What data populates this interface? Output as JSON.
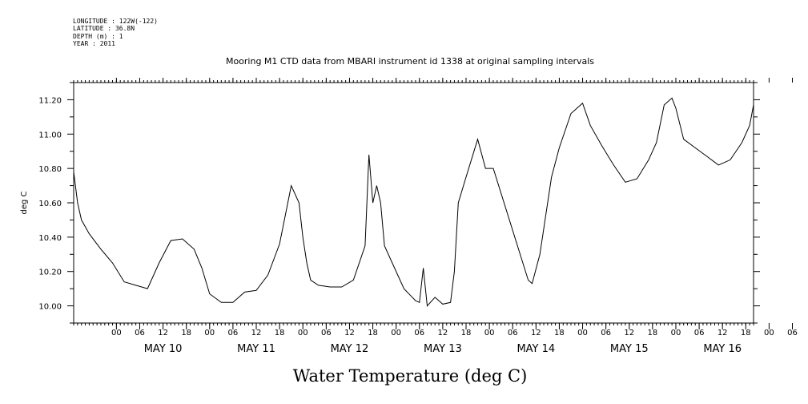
{
  "header": {
    "longitude": "LONGITUDE : 122W(-122)",
    "latitude": "LATITUDE : 36.8N",
    "depth": "DEPTH (m) : 1",
    "year": "YEAR : 2011"
  },
  "chart_data": {
    "type": "line",
    "title": "Mooring M1 CTD data from MBARI instrument id 1338 at original sampling intervals",
    "xlabel": "Water Temperature (deg C)",
    "ylabel": "deg C",
    "ylim": [
      9.9,
      11.3
    ],
    "y_ticks": [
      "10.00",
      "10.20",
      "10.40",
      "10.60",
      "10.80",
      "11.00",
      "11.20"
    ],
    "x_start": "2011-05-09 13:00",
    "x_end": "2011-05-16 20:00",
    "x_hour_ticks": [
      "00",
      "06",
      "12",
      "18",
      "00",
      "06",
      "12",
      "18",
      "00",
      "06",
      "12",
      "18",
      "00",
      "06",
      "12",
      "18",
      "00",
      "06",
      "12",
      "18",
      "00",
      "06",
      "12",
      "18",
      "00",
      "06",
      "12",
      "18",
      "00",
      "06",
      "12",
      "18"
    ],
    "x_day_labels": [
      "MAY 10",
      "MAY 11",
      "MAY 12",
      "MAY 13",
      "MAY 14",
      "MAY 15",
      "MAY 16"
    ],
    "grid": false,
    "series": [
      {
        "x": [
          "2011-05-09 13:00",
          "2011-05-09 14:00",
          "2011-05-09 15:00",
          "2011-05-09 17:00",
          "2011-05-09 20:00",
          "2011-05-09 23:00",
          "2011-05-10 02:00",
          "2011-05-10 05:00",
          "2011-05-10 08:00",
          "2011-05-10 11:00",
          "2011-05-10 14:00",
          "2011-05-10 17:00",
          "2011-05-10 20:00",
          "2011-05-10 22:00",
          "2011-05-11 00:00",
          "2011-05-11 03:00",
          "2011-05-11 06:00",
          "2011-05-11 09:00",
          "2011-05-11 12:00",
          "2011-05-11 15:00",
          "2011-05-11 18:00",
          "2011-05-11 21:00",
          "2011-05-11 23:00",
          "2011-05-12 00:00",
          "2011-05-12 01:00",
          "2011-05-12 02:00",
          "2011-05-12 04:00",
          "2011-05-12 07:00",
          "2011-05-12 10:00",
          "2011-05-12 13:00",
          "2011-05-12 16:00",
          "2011-05-12 17:00",
          "2011-05-12 18:00",
          "2011-05-12 19:00",
          "2011-05-12 20:00",
          "2011-05-12 21:00",
          "2011-05-12 23:00",
          "2011-05-13 02:00",
          "2011-05-13 05:00",
          "2011-05-13 06:00",
          "2011-05-13 07:00",
          "2011-05-13 08:00",
          "2011-05-13 10:00",
          "2011-05-13 12:00",
          "2011-05-13 14:00",
          "2011-05-13 15:00",
          "2011-05-13 16:00",
          "2011-05-13 18:00",
          "2011-05-13 21:00",
          "2011-05-13 23:00",
          "2011-05-14 01:00",
          "2011-05-14 10:00",
          "2011-05-14 11:00",
          "2011-05-14 13:00",
          "2011-05-14 16:00",
          "2011-05-14 18:00",
          "2011-05-14 21:00",
          "2011-05-15 00:00",
          "2011-05-15 02:00",
          "2011-05-15 05:00",
          "2011-05-15 08:00",
          "2011-05-15 11:00",
          "2011-05-15 14:00",
          "2011-05-15 17:00",
          "2011-05-15 19:00",
          "2011-05-15 21:00",
          "2011-05-15 23:00",
          "2011-05-16 00:00",
          "2011-05-16 02:00",
          "2011-05-16 05:00",
          "2011-05-16 08:00",
          "2011-05-16 11:00",
          "2011-05-16 14:00",
          "2011-05-16 17:00",
          "2011-05-16 19:00",
          "2011-05-16 20:00"
        ],
        "y": [
          10.78,
          10.6,
          10.5,
          10.42,
          10.33,
          10.25,
          10.14,
          10.12,
          10.1,
          10.25,
          10.38,
          10.39,
          10.33,
          10.22,
          10.07,
          10.02,
          10.02,
          10.08,
          10.09,
          10.18,
          10.36,
          10.7,
          10.6,
          10.4,
          10.25,
          10.15,
          10.12,
          10.11,
          10.11,
          10.15,
          10.35,
          10.88,
          10.6,
          10.7,
          10.6,
          10.35,
          10.25,
          10.1,
          10.03,
          10.02,
          10.22,
          10.0,
          10.05,
          10.01,
          10.02,
          10.2,
          10.6,
          10.75,
          10.97,
          10.8,
          10.8,
          10.15,
          10.13,
          10.3,
          10.75,
          10.92,
          11.12,
          11.18,
          11.05,
          10.93,
          10.82,
          10.72,
          10.74,
          10.85,
          10.95,
          11.17,
          11.21,
          11.15,
          10.97,
          10.92,
          10.87,
          10.82,
          10.85,
          10.95,
          11.05,
          11.17
        ]
      }
    ]
  }
}
